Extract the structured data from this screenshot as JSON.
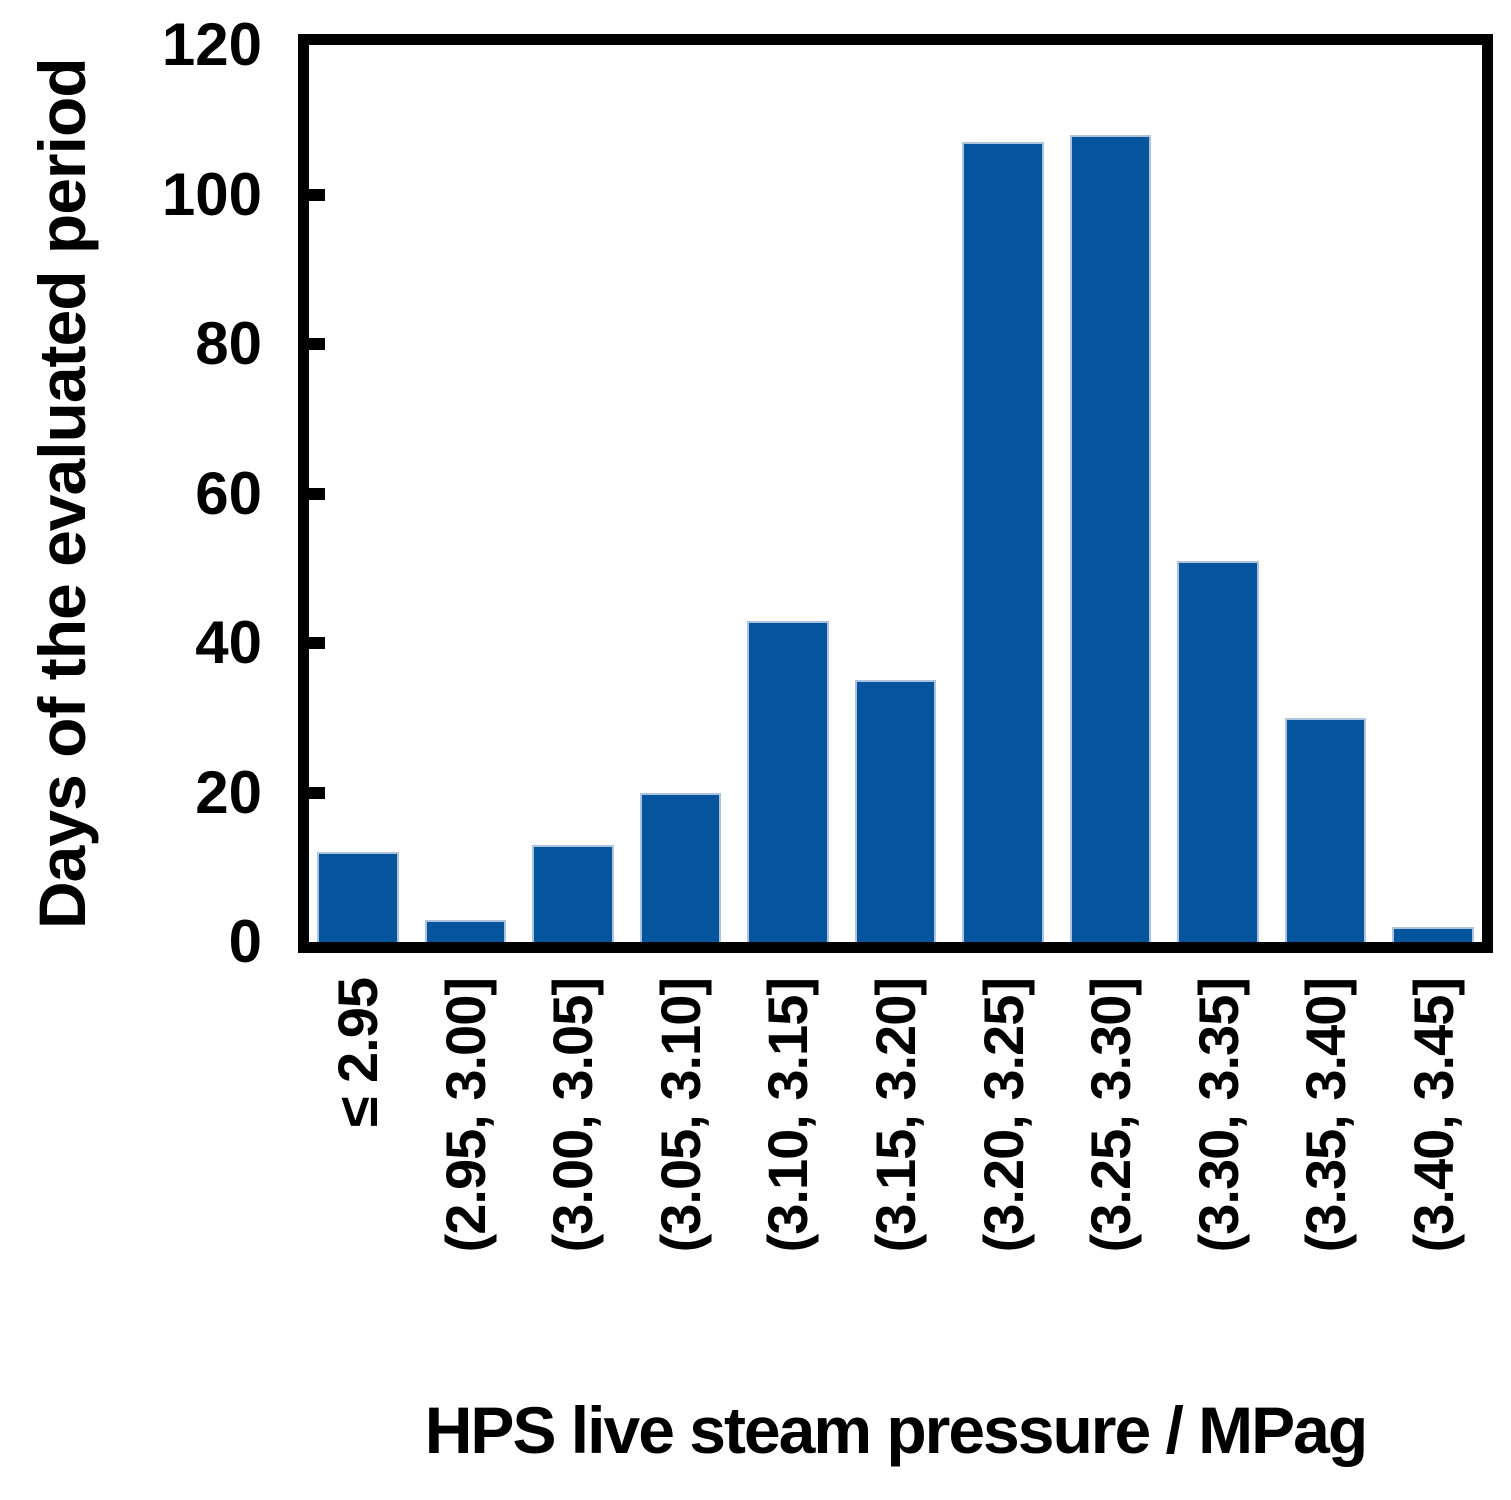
{
  "chart_data": {
    "type": "bar",
    "title": "",
    "categories": [
      "≤ 2.95",
      "(2.95, 3.00]",
      "(3.00, 3.05]",
      "(3.05, 3.10]",
      "(3.10, 3.15]",
      "(3.15, 3.20]",
      "(3.20, 3.25]",
      "(3.25, 3.30]",
      "(3.30, 3.35]",
      "(3.35, 3.40]",
      "(3.40, 3.45]"
    ],
    "values": [
      12,
      3,
      13,
      20,
      43,
      35,
      107,
      108,
      51,
      30,
      2
    ],
    "xlabel": "HPS live steam pressure / MPag",
    "ylabel": "Days of the evaluated period",
    "ylim": [
      0,
      120
    ],
    "yticks": [
      0,
      20,
      40,
      60,
      80,
      100,
      120
    ],
    "grid": false,
    "legend": null,
    "bar_color": "#05549E",
    "bar_edge_color": "#AEC4DE",
    "axis_color": "#000000"
  }
}
